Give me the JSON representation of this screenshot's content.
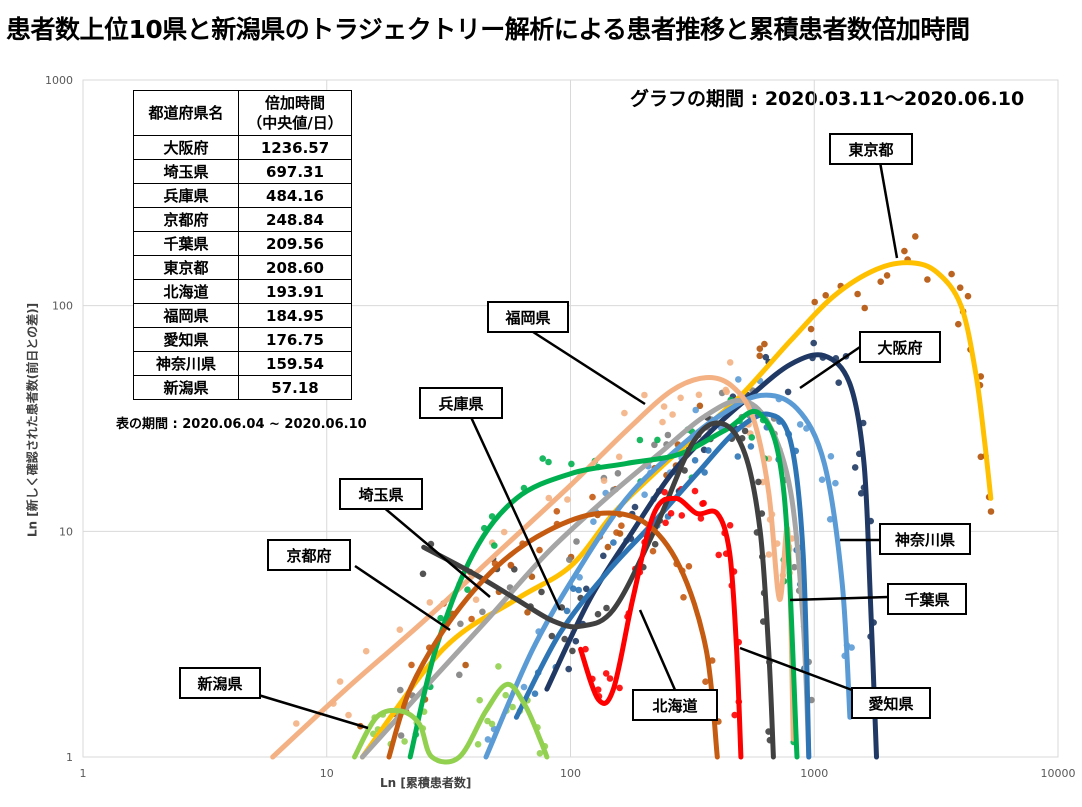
{
  "title": "患者数上位10県と新潟県のトラジェクトリー解析による患者推移と累積患者数倍加時間",
  "period_label": "グラフの期間 : 2020.03.11〜2020.06.10",
  "table": {
    "header_name": "都道府県名",
    "header_value_line1": "倍加時間",
    "header_value_line2": "（中央値/日）",
    "rows": [
      {
        "name": "大阪府",
        "value": "1236.57"
      },
      {
        "name": "埼玉県",
        "value": "697.31"
      },
      {
        "name": "兵庫県",
        "value": "484.16"
      },
      {
        "name": "京都府",
        "value": "248.84"
      },
      {
        "name": "千葉県",
        "value": "209.56"
      },
      {
        "name": "東京都",
        "value": "208.60"
      },
      {
        "name": "北海道",
        "value": "193.91"
      },
      {
        "name": "福岡県",
        "value": "184.95"
      },
      {
        "name": "愛知県",
        "value": "176.75"
      },
      {
        "name": "神奈川県",
        "value": "159.54"
      },
      {
        "name": "新潟県",
        "value": "57.18"
      }
    ],
    "note": "表の期間 : 2020.06.04 ~ 2020.06.10"
  },
  "chart_data": {
    "type": "scatter",
    "title": "患者数上位10県と新潟県のトラジェクトリー解析による患者推移と累積患者数倍加時間",
    "xlabel": "Ln [累積患者数]",
    "ylabel": "Ln [新しく確認された患者数(前日との差)]",
    "x_scale": "log",
    "y_scale": "log",
    "xlim": [
      1,
      10000
    ],
    "ylim": [
      1,
      1000
    ],
    "x_ticks": [
      "1",
      "10",
      "100",
      "1000",
      "10000"
    ],
    "y_ticks": [
      "1",
      "10",
      "100",
      "1000"
    ],
    "grid": true,
    "series": [
      {
        "name": "東京都",
        "color": "#FFC000",
        "dot_color": "#B45309",
        "x": [
          14,
          30,
          60,
          100,
          150,
          220,
          320,
          500,
          800,
          1200,
          1800,
          2500,
          3200,
          4000,
          4600,
          5000,
          5300
        ],
        "y": [
          1,
          3,
          5,
          7,
          12,
          18,
          26,
          40,
          70,
          110,
          145,
          155,
          140,
          100,
          50,
          25,
          14
        ]
      },
      {
        "name": "大阪府",
        "color": "#203864",
        "dot_color": "#1F3864",
        "x": [
          80,
          120,
          180,
          260,
          380,
          550,
          800,
          1100,
          1400,
          1600,
          1700,
          1800
        ],
        "y": [
          2,
          5,
          10,
          18,
          28,
          40,
          55,
          60,
          45,
          20,
          5,
          1
        ]
      },
      {
        "name": "神奈川県",
        "color": "#5B9BD5",
        "dot_color": "#5B9BD5",
        "x": [
          45,
          70,
          110,
          170,
          260,
          400,
          600,
          850,
          1100,
          1300,
          1400
        ],
        "y": [
          1,
          3,
          7,
          14,
          22,
          32,
          40,
          35,
          20,
          6,
          1.5
        ]
      },
      {
        "name": "千葉県",
        "color": "#A5A5A5",
        "dot_color": "#7F7F7F",
        "x": [
          14,
          25,
          45,
          80,
          140,
          230,
          350,
          500,
          650,
          800,
          900,
          950
        ],
        "y": [
          1,
          2,
          4,
          8,
          14,
          22,
          32,
          38,
          30,
          15,
          4,
          1
        ]
      },
      {
        "name": "埼玉県",
        "color": "#2E75B6",
        "dot_color": "#2E75B6",
        "x": [
          60,
          90,
          140,
          220,
          330,
          480,
          650,
          800,
          900,
          950
        ],
        "y": [
          1.5,
          3.5,
          6.5,
          11,
          18,
          28,
          33,
          25,
          8,
          1
        ]
      },
      {
        "name": "福岡県",
        "color": "#F4B183",
        "dot_color": "#F4B183",
        "x": [
          6,
          12,
          25,
          50,
          100,
          170,
          260,
          360,
          460,
          560,
          650,
          720,
          780,
          820
        ],
        "y": [
          1,
          2,
          4,
          8,
          16,
          28,
          42,
          48,
          44,
          32,
          15,
          5,
          10,
          1.2
        ]
      },
      {
        "name": "愛知県",
        "color": "#00B050",
        "dot_color": "#00B050",
        "x": [
          22,
          28,
          40,
          60,
          100,
          170,
          280,
          430,
          600,
          750,
          850
        ],
        "y": [
          1,
          3,
          8,
          14,
          18,
          20,
          22,
          28,
          33,
          15,
          1
        ]
      },
      {
        "name": "兵庫県",
        "color": "#404040",
        "dot_color": "#404040",
        "x": [
          25,
          40,
          60,
          85,
          110,
          150,
          220,
          320,
          420,
          520,
          600,
          650,
          680
        ],
        "y": [
          8.5,
          6.5,
          5,
          4,
          3.8,
          4.5,
          10,
          25,
          30,
          22,
          10,
          3,
          1
        ]
      },
      {
        "name": "京都府",
        "color": "#C55A11",
        "dot_color": "#C55A11",
        "x": [
          18,
          22,
          32,
          50,
          80,
          130,
          200,
          280,
          360,
          400
        ],
        "y": [
          1,
          2,
          4,
          7,
          10,
          12,
          11,
          7,
          3,
          1
        ]
      },
      {
        "name": "北海道",
        "color": "#FF0000",
        "dot_color": "#FF0000",
        "x": [
          110,
          130,
          150,
          180,
          220,
          270,
          330,
          400,
          450,
          480,
          500
        ],
        "y": [
          3,
          1.8,
          2,
          5,
          12,
          14,
          12,
          12,
          8,
          3,
          1
        ]
      },
      {
        "name": "新潟県",
        "color": "#92D050",
        "dot_color": "#92D050",
        "x": [
          13,
          16,
          20,
          24,
          27,
          35,
          45,
          55,
          65,
          75,
          80
        ],
        "y": [
          1,
          1.5,
          1.6,
          1.4,
          1,
          1,
          1.6,
          2.1,
          1.7,
          1.2,
          1
        ]
      }
    ]
  }
}
